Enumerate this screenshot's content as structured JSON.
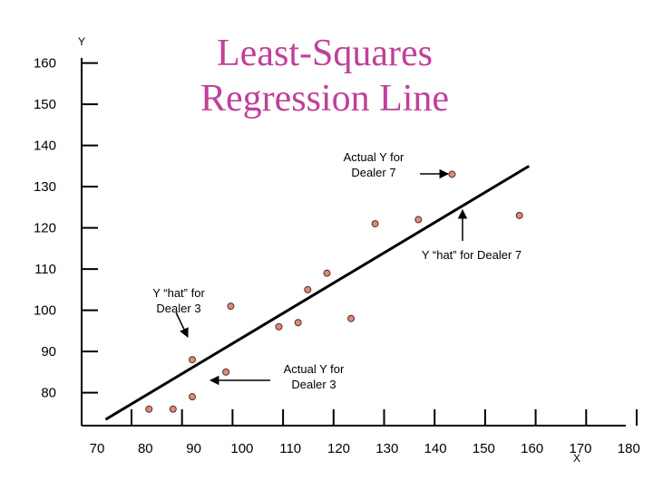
{
  "chart_data": {
    "type": "scatter",
    "title_lines": [
      "Least-Squares",
      "Regression Line"
    ],
    "xlabel": "X",
    "ylabel": "Y",
    "xlim": [
      65,
      180
    ],
    "ylim": [
      72,
      163
    ],
    "x_ticks": [
      70,
      80,
      90,
      100,
      110,
      120,
      130,
      140,
      150,
      160,
      170,
      180
    ],
    "y_ticks": [
      80,
      90,
      100,
      110,
      120,
      130,
      140,
      150,
      160
    ],
    "grid": false,
    "points": [
      {
        "x": 79,
        "y": 76
      },
      {
        "x": 84,
        "y": 76
      },
      {
        "x": 88,
        "y": 79
      },
      {
        "x": 88,
        "y": 88
      },
      {
        "x": 95,
        "y": 85
      },
      {
        "x": 96,
        "y": 101
      },
      {
        "x": 106,
        "y": 96
      },
      {
        "x": 110,
        "y": 97
      },
      {
        "x": 112,
        "y": 105
      },
      {
        "x": 116,
        "y": 109
      },
      {
        "x": 121,
        "y": 98
      },
      {
        "x": 126,
        "y": 121
      },
      {
        "x": 135,
        "y": 122
      },
      {
        "x": 142,
        "y": 133
      },
      {
        "x": 156,
        "y": 123
      }
    ],
    "regression_line": {
      "x": [
        70,
        158
      ],
      "y": [
        73.5,
        135
      ]
    },
    "annotations": [
      {
        "lines": [
          "Actual Y for",
          "Dealer 7"
        ],
        "arrow_to": {
          "x": 142,
          "y": 133
        }
      },
      {
        "lines": [
          "Y “hat” for Dealer 7"
        ],
        "arrow_to": {
          "x": 142,
          "y": 122
        }
      },
      {
        "lines": [
          "Y “hat”  for",
          "Dealer 3"
        ],
        "arrow_to": {
          "x": 88,
          "y": 88
        }
      },
      {
        "lines": [
          "Actual Y for",
          "Dealer 3"
        ],
        "arrow_to": {
          "x": 88,
          "y": 79
        }
      }
    ],
    "colors": {
      "point_fill": "#d98c7a",
      "point_stroke": "#5a2a20",
      "title": "#c0409a",
      "line": "#000000"
    }
  }
}
